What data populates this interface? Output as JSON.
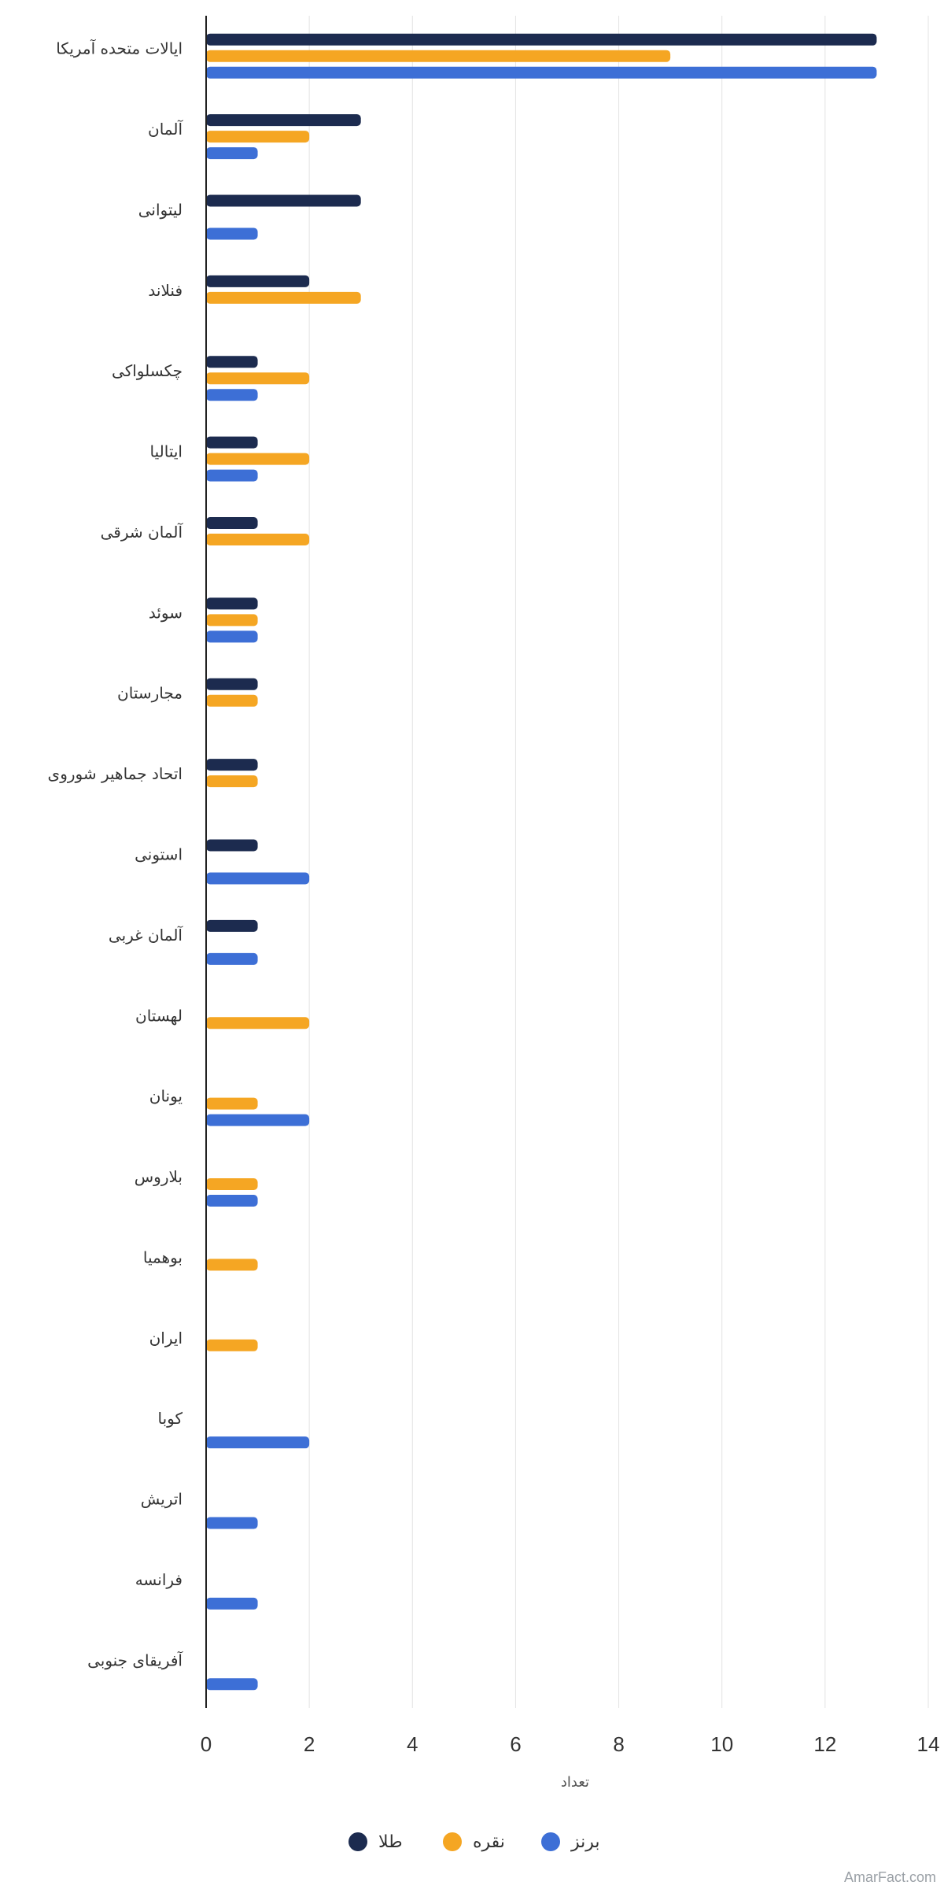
{
  "chart_data": {
    "type": "bar",
    "orientation": "horizontal",
    "title": "",
    "xlabel": "تعداد",
    "ylabel": "",
    "xlim": [
      0,
      14
    ],
    "x_ticks": [
      0,
      2,
      4,
      6,
      8,
      10,
      12,
      14
    ],
    "grid": true,
    "legend_position": "bottom-center",
    "categories": [
      "ایالات متحده آمریکا",
      "آلمان",
      "لیتوانی",
      "فنلاند",
      "چکسلواکی",
      "ایتالیا",
      "آلمان شرقی",
      "سوئد",
      "مجارستان",
      "اتحاد جماهیر شوروی",
      "استونی",
      "آلمان غربی",
      "لهستان",
      "یونان",
      "بلاروس",
      "بوهمیا",
      "ایران",
      "کوبا",
      "اتریش",
      "فرانسه",
      "آفریقای جنوبی"
    ],
    "series": [
      {
        "name": "طلا",
        "color": "#1c2b4f",
        "values": [
          13,
          3,
          3,
          2,
          1,
          1,
          1,
          1,
          1,
          1,
          1,
          1,
          0,
          0,
          0,
          0,
          0,
          0,
          0,
          0,
          0
        ]
      },
      {
        "name": "نقره",
        "color": "#f5a623",
        "values": [
          9,
          2,
          0,
          3,
          2,
          2,
          2,
          1,
          1,
          1,
          0,
          0,
          2,
          1,
          1,
          1,
          1,
          0,
          0,
          0,
          0
        ]
      },
      {
        "name": "برنز",
        "color": "#3d6fd6",
        "values": [
          13,
          1,
          1,
          0,
          1,
          1,
          0,
          1,
          0,
          0,
          2,
          1,
          0,
          2,
          1,
          0,
          0,
          2,
          1,
          1,
          1
        ]
      }
    ]
  },
  "watermark": "AmarFact.com"
}
